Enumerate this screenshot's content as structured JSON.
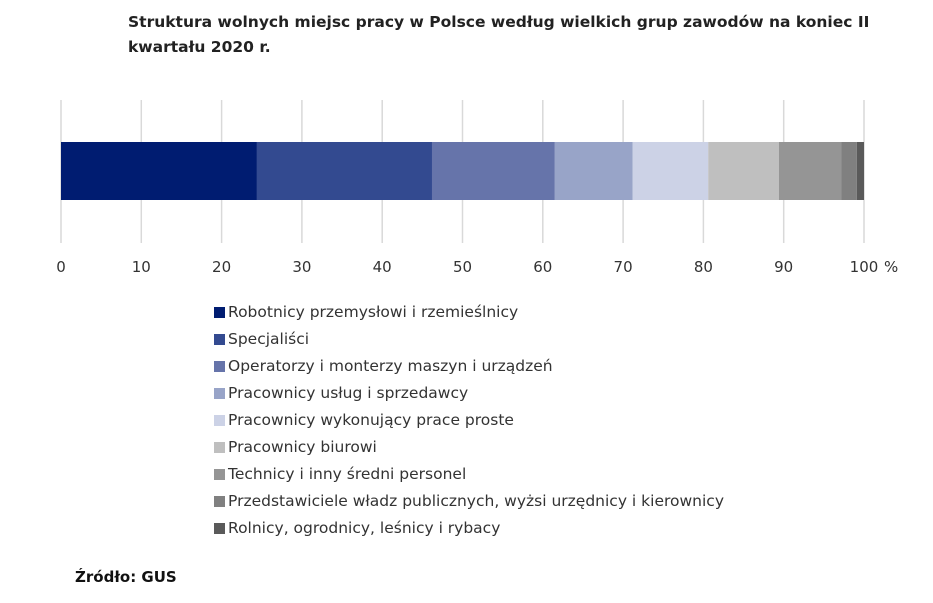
{
  "chart_data": {
    "type": "bar",
    "orientation": "horizontal-stacked",
    "title": "Struktura wolnych miejsc pracy w Polsce według wielkich grup zawodów na koniec II kwartału 2020 r.",
    "xlabel": "%",
    "xlim": [
      0,
      100
    ],
    "xticks": [
      "0",
      "10",
      "20",
      "30",
      "40",
      "50",
      "60",
      "70",
      "80",
      "90",
      "100"
    ],
    "grid": true,
    "legend_position": "bottom",
    "series": [
      {
        "name": "Robotnicy przemysłowi i rzemieślnicy",
        "value": 24.4,
        "color": "#001c71"
      },
      {
        "name": "Specjaliści",
        "value": 21.8,
        "color": "#334a90"
      },
      {
        "name": "Operatorzy i monterzy maszyn i urządzeń",
        "value": 15.3,
        "color": "#6674aa"
      },
      {
        "name": "Pracownicy usług i sprzedawcy",
        "value": 9.7,
        "color": "#98a4c8"
      },
      {
        "name": "Pracownicy wykonujący prace proste",
        "value": 9.4,
        "color": "#ccd2e6"
      },
      {
        "name": "Pracownicy biurowi",
        "value": 8.8,
        "color": "#bfbfbf"
      },
      {
        "name": "Technicy i inny średni personel",
        "value": 7.8,
        "color": "#959595"
      },
      {
        "name": "Przedstawiciele władz publicznych, wyżsi urzędnicy i kierownicy",
        "value": 1.9,
        "color": "#808080"
      },
      {
        "name": "Rolnicy, ogrodnicy, leśnicy i rybacy",
        "value": 0.9,
        "color": "#5a5a5a"
      }
    ]
  },
  "source": "Źródło: GUS"
}
